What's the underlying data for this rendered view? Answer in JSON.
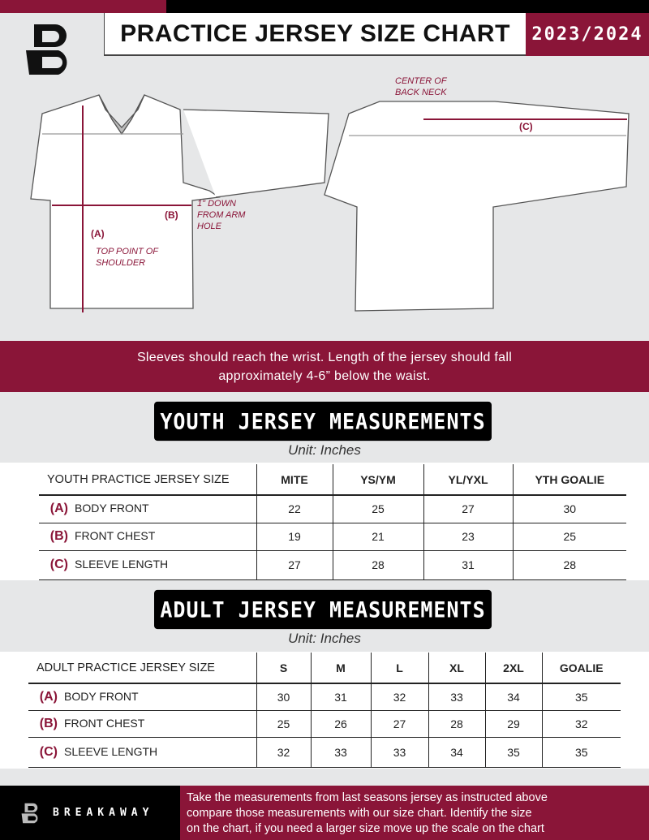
{
  "header": {
    "title": "PRACTICE JERSEY SIZE CHART",
    "season": "2023/2024",
    "logo_letter": "B"
  },
  "colors": {
    "accent": "#8a1538",
    "dark": "#000000",
    "background": "#e6e7e8"
  },
  "diagram": {
    "front": {
      "a_label": "(A)",
      "a_note": "TOP POINT OF SHOULDER",
      "b_label": "(B)",
      "b_note": "1\" DOWN FROM ARM HOLE"
    },
    "back": {
      "c_label": "(C)",
      "c_note": "CENTER OF BACK NECK"
    }
  },
  "band_text": [
    "Sleeves should reach the wrist. Length of the jersey should fall",
    "approximately 4-6” below the waist."
  ],
  "youth": {
    "title": "YOUTH JERSEY MEASUREMENTS",
    "unit": "Unit: Inches",
    "header_label": "YOUTH PRACTICE JERSEY SIZE",
    "sizes": [
      "MITE",
      "YS/YM",
      "YL/YXL",
      "YTH GOALIE"
    ],
    "rows": [
      {
        "letter": "(A)",
        "name": "BODY FRONT",
        "values": [
          "22",
          "25",
          "27",
          "30"
        ]
      },
      {
        "letter": "(B)",
        "name": "FRONT CHEST",
        "values": [
          "19",
          "21",
          "23",
          "25"
        ]
      },
      {
        "letter": "(C)",
        "name": "SLEEVE LENGTH",
        "values": [
          "27",
          "28",
          "31",
          "28"
        ]
      }
    ]
  },
  "adult": {
    "title": "ADULT JERSEY MEASUREMENTS",
    "unit": "Unit: Inches",
    "header_label": "ADULT PRACTICE JERSEY SIZE",
    "sizes": [
      "S",
      "M",
      "L",
      "XL",
      "2XL",
      "GOALIE"
    ],
    "rows": [
      {
        "letter": "(A)",
        "name": "BODY FRONT",
        "values": [
          "30",
          "31",
          "32",
          "33",
          "34",
          "35"
        ]
      },
      {
        "letter": "(B)",
        "name": "FRONT CHEST",
        "values": [
          "25",
          "26",
          "27",
          "28",
          "29",
          "32"
        ]
      },
      {
        "letter": "(C)",
        "name": "SLEEVE LENGTH",
        "values": [
          "32",
          "33",
          "33",
          "34",
          "35",
          "35"
        ]
      }
    ]
  },
  "footer": {
    "brand": "BREAKAWAY",
    "text": [
      "Take the measurements from last seasons jersey as instructed above",
      "compare those measurements  with our size chart. Identify the size",
      "on the chart, if you need a larger size move up the scale on the chart"
    ]
  }
}
